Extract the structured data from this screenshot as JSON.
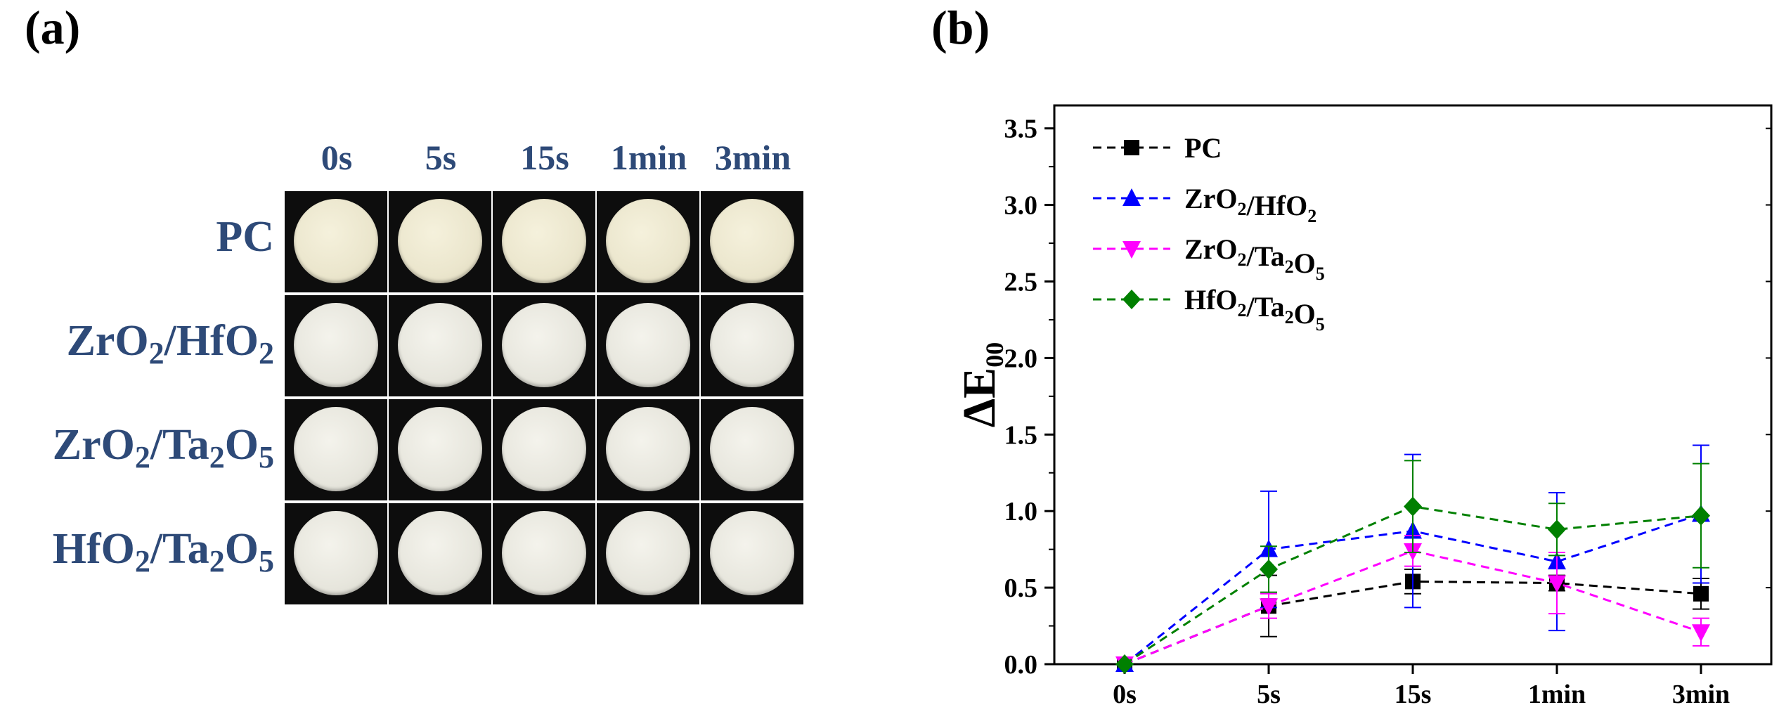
{
  "panel_a": {
    "label": "(a)",
    "columns": [
      "0s",
      "5s",
      "15s",
      "1min",
      "3min"
    ],
    "rows": [
      {
        "base": "PC",
        "parts": [
          [
            "PC",
            ""
          ]
        ]
      },
      {
        "base": "ZrO2/HfO2",
        "parts": [
          [
            "ZrO",
            "2"
          ],
          [
            "/HfO",
            "2"
          ]
        ]
      },
      {
        "base": "ZrO2/Ta2O5",
        "parts": [
          [
            "ZrO",
            "2"
          ],
          [
            "/Ta",
            "2"
          ],
          [
            "O",
            "5"
          ]
        ]
      },
      {
        "base": "HfO2/Ta2O5",
        "parts": [
          [
            "HfO",
            "2"
          ],
          [
            "/Ta",
            "2"
          ],
          [
            "O",
            "5"
          ]
        ]
      }
    ]
  },
  "panel_b": {
    "label": "(b)"
  },
  "chart_data": {
    "type": "line",
    "title": "",
    "xlabel": "",
    "ylabel": "ΔE00",
    "ylabel_main": "ΔE",
    "ylabel_sub": "00",
    "categories": [
      "0s",
      "5s",
      "15s",
      "1min",
      "3min"
    ],
    "ylim": [
      0,
      3.65
    ],
    "yticks": [
      "0.0",
      "0.5",
      "1.0",
      "1.5",
      "2.0",
      "2.5",
      "3.0",
      "3.5"
    ],
    "legend_position": "top-left",
    "series": [
      {
        "name": "PC",
        "label_parts": [
          [
            "PC",
            ""
          ]
        ],
        "color": "#000000",
        "marker": "square",
        "values": [
          0.0,
          0.38,
          0.54,
          0.53,
          0.46
        ],
        "errors": [
          0.0,
          0.2,
          0.08,
          0.05,
          0.1
        ]
      },
      {
        "name": "ZrO2/HfO2",
        "label_parts": [
          [
            "ZrO",
            "2"
          ],
          [
            "/HfO",
            "2"
          ]
        ],
        "color": "#0000ff",
        "marker": "triangle-up",
        "values": [
          0.0,
          0.75,
          0.87,
          0.67,
          0.98
        ],
        "errors": [
          0.0,
          0.38,
          0.5,
          0.45,
          0.45
        ]
      },
      {
        "name": "ZrO2/Ta2O5",
        "label_parts": [
          [
            "ZrO",
            "2"
          ],
          [
            "/Ta",
            "2"
          ],
          [
            "O",
            "5"
          ]
        ],
        "color": "#ff00ff",
        "marker": "triangle-down",
        "values": [
          0.0,
          0.38,
          0.74,
          0.53,
          0.21
        ],
        "errors": [
          0.0,
          0.08,
          0.1,
          0.2,
          0.09
        ]
      },
      {
        "name": "HfO2/Ta2O5",
        "label_parts": [
          [
            "HfO",
            "2"
          ],
          [
            "/Ta",
            "2"
          ],
          [
            "O",
            "5"
          ]
        ],
        "color": "#008000",
        "marker": "diamond",
        "values": [
          0.0,
          0.62,
          1.03,
          0.88,
          0.97
        ],
        "errors": [
          0.0,
          0.15,
          0.3,
          0.17,
          0.34
        ]
      }
    ]
  }
}
